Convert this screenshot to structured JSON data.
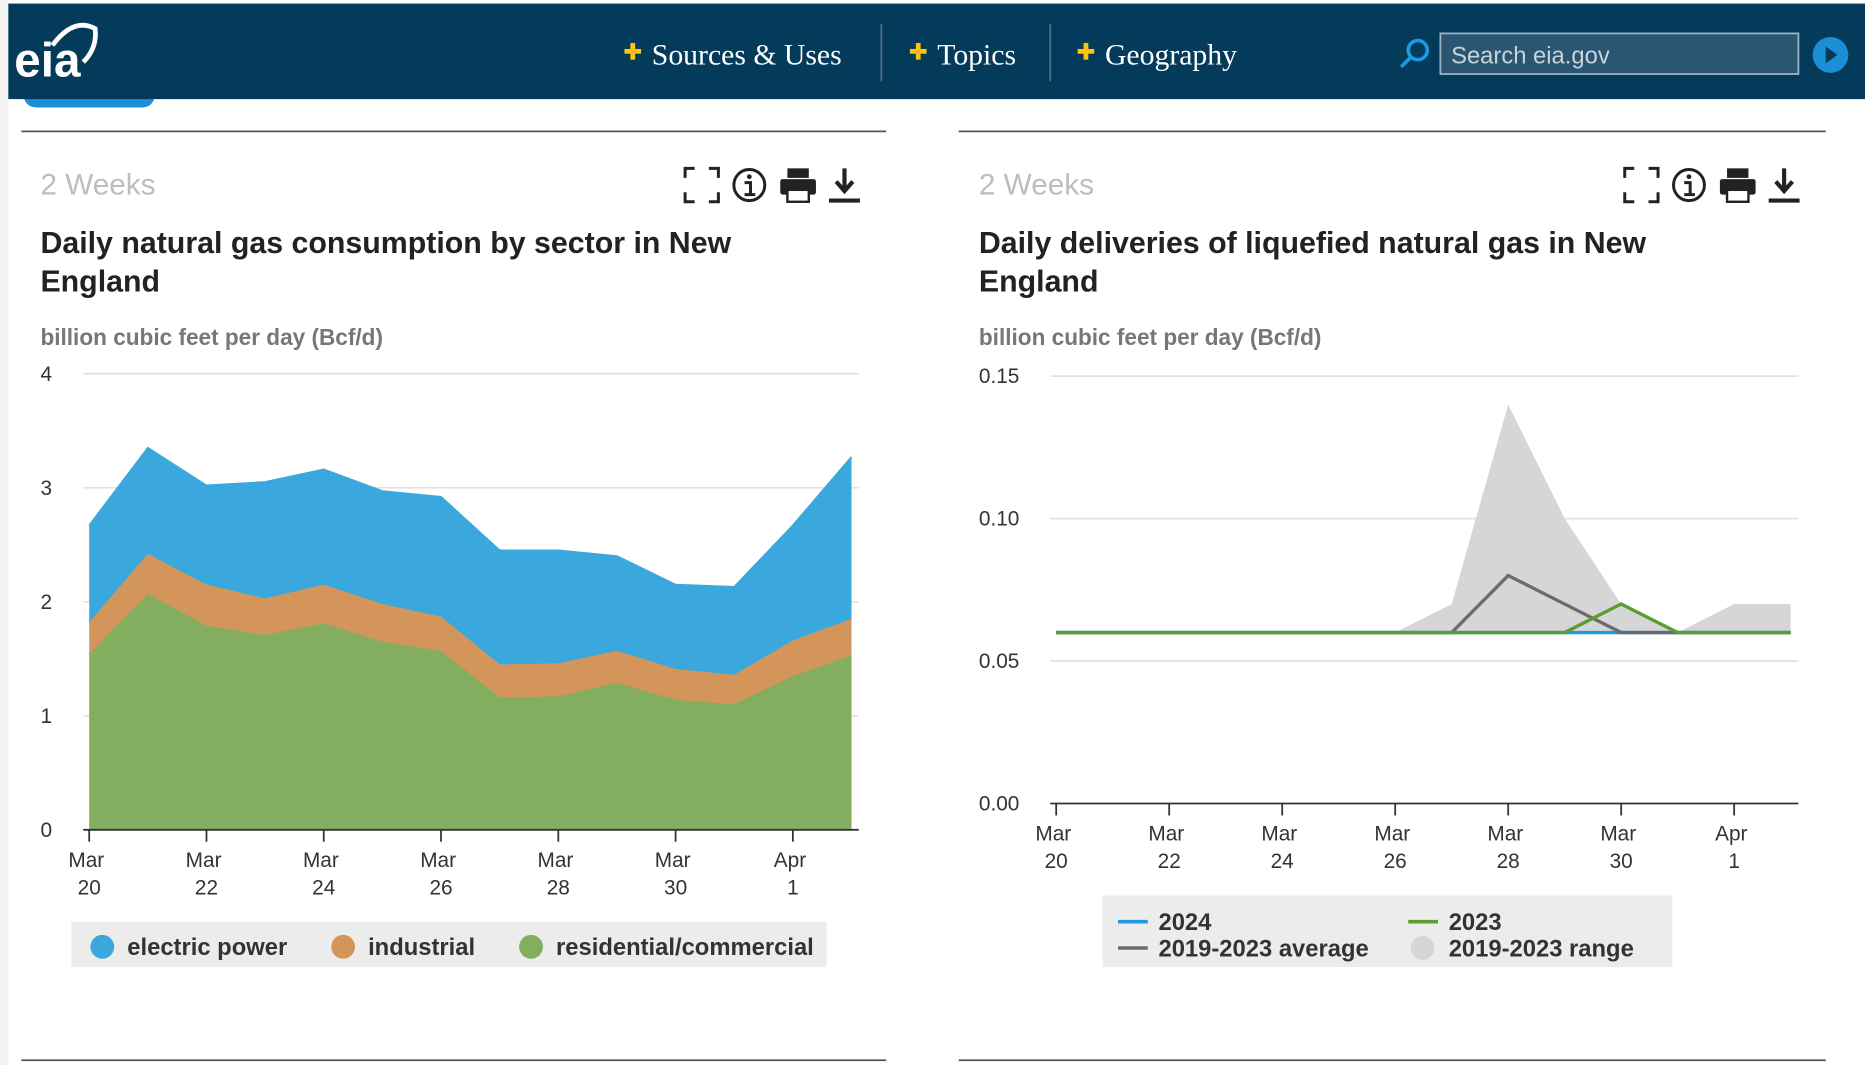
{
  "header": {
    "logo": "eia",
    "nav": [
      "Sources & Uses",
      "Topics",
      "Geography"
    ],
    "search_placeholder": "Search eia.gov"
  },
  "panels": [
    {
      "period": "2 Weeks"
    },
    {
      "period": "2 Weeks"
    }
  ],
  "chart_data": [
    {
      "type": "area",
      "stacked": true,
      "title": "Daily natural gas consumption by sector in New England",
      "y_label": "billion cubic feet per day (Bcf/d)",
      "categories": [
        "Mar 20",
        null,
        "Mar 22",
        null,
        "Mar 24",
        null,
        "Mar 26",
        null,
        "Mar 28",
        null,
        "Mar 30",
        null,
        "Apr 1",
        null
      ],
      "series": [
        {
          "name": "electric power",
          "color": "#3aa8dc",
          "values": [
            0.85,
            0.93,
            0.87,
            1.02,
            1.01,
            0.99,
            1.05,
            1.0,
            0.99,
            0.83,
            0.74,
            0.77,
            1.01,
            1.42
          ]
        },
        {
          "name": "industrial",
          "color": "#d4955a",
          "values": [
            0.28,
            0.35,
            0.36,
            0.32,
            0.34,
            0.33,
            0.3,
            0.29,
            0.29,
            0.28,
            0.27,
            0.26,
            0.31,
            0.32
          ]
        },
        {
          "name": "residential/commercial",
          "color": "#84ae5f",
          "values": [
            1.54,
            2.07,
            1.79,
            1.71,
            1.81,
            1.65,
            1.57,
            1.16,
            1.17,
            1.29,
            1.14,
            1.1,
            1.35,
            1.53
          ]
        }
      ],
      "ylim": [
        0,
        4
      ],
      "yticks": [
        0,
        1,
        2,
        3,
        4
      ],
      "grid": true
    },
    {
      "type": "line",
      "title": "Daily deliveries of liquefied natural gas in New England",
      "y_label": "billion cubic feet per day (Bcf/d)",
      "categories": [
        "Mar 20",
        null,
        "Mar 22",
        null,
        "Mar 24",
        null,
        "Mar 26",
        null,
        "Mar 28",
        null,
        "Mar 30",
        null,
        "Apr 1",
        null
      ],
      "series": [
        {
          "name": "2024",
          "color": "#1d9ae0",
          "values": [
            0.06,
            0.06,
            0.06,
            0.06,
            0.06,
            0.06,
            0.06,
            0.06,
            0.06,
            0.06,
            0.06,
            0.06,
            0.06,
            0.06
          ]
        },
        {
          "name": "2023",
          "color": "#5a9e32",
          "values": [
            0.06,
            0.06,
            0.06,
            0.06,
            0.06,
            0.06,
            0.06,
            0.06,
            0.06,
            0.06,
            0.07,
            0.06,
            0.06,
            0.06
          ]
        },
        {
          "name": "2019-2023 average",
          "color": "#6b6b6b",
          "values": [
            0.06,
            0.06,
            0.06,
            0.06,
            0.06,
            0.06,
            0.06,
            0.06,
            0.08,
            0.07,
            0.06,
            0.06,
            0.06,
            0.06
          ]
        },
        {
          "name": "2019-2023 range",
          "color": "#d6d6d6",
          "low": [
            0.06,
            0.06,
            0.06,
            0.06,
            0.06,
            0.06,
            0.06,
            0.06,
            0.06,
            0.06,
            0.06,
            0.06,
            0.06,
            0.06
          ],
          "high": [
            0.06,
            0.06,
            0.06,
            0.06,
            0.06,
            0.06,
            0.06,
            0.07,
            0.14,
            0.1,
            0.07,
            0.06,
            0.07,
            0.07
          ]
        }
      ],
      "ylim": [
        0,
        0.15
      ],
      "yticks": [
        {
          "value": 0,
          "label": "0.00"
        },
        0.05,
        {
          "value": 0.1,
          "label": "0.10"
        },
        0.15
      ],
      "grid": true
    }
  ]
}
